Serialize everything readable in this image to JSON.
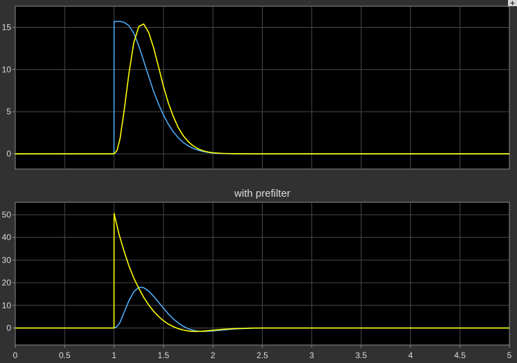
{
  "chart_data": [
    {
      "type": "line",
      "title": "",
      "xlabel": "",
      "ylabel": "",
      "xlim": [
        0,
        5
      ],
      "ylim": [
        -1.8,
        17.5
      ],
      "grid": true,
      "background": "#000000",
      "xticks": [
        0,
        0.5,
        1,
        1.5,
        2,
        2.5,
        3,
        3.5,
        4,
        4.5,
        5
      ],
      "xtick_labels_shown": false,
      "yticks": [
        0,
        5,
        10,
        15
      ],
      "series": [
        {
          "color": "#4dabf7",
          "x": [
            0,
            0.999,
            1.0,
            1.03,
            1.06,
            1.1,
            1.15,
            1.2,
            1.25,
            1.3,
            1.35,
            1.4,
            1.45,
            1.5,
            1.55,
            1.6,
            1.65,
            1.7,
            1.75,
            1.8,
            1.85,
            1.9,
            1.95,
            2.0,
            2.1,
            2.2,
            2.4,
            2.7,
            3.0,
            3.5,
            4.0,
            4.5,
            5.0
          ],
          "y": [
            0,
            0,
            15.7,
            15.7,
            15.7,
            15.6,
            15.2,
            14.3,
            12.8,
            11.0,
            9.2,
            7.4,
            5.9,
            4.6,
            3.5,
            2.6,
            1.9,
            1.35,
            0.95,
            0.65,
            0.43,
            0.28,
            0.17,
            0.1,
            0.04,
            0.015,
            0,
            0,
            0,
            0,
            0,
            0,
            0
          ]
        },
        {
          "color": "#ffff00",
          "x": [
            0,
            1.0,
            1.03,
            1.06,
            1.1,
            1.15,
            1.2,
            1.25,
            1.3,
            1.35,
            1.4,
            1.45,
            1.5,
            1.55,
            1.6,
            1.65,
            1.7,
            1.75,
            1.8,
            1.85,
            1.9,
            1.95,
            2.0,
            2.1,
            2.2,
            2.4,
            2.7,
            3.0,
            3.5,
            4.0,
            4.5,
            5.0
          ],
          "y": [
            0,
            0,
            0.4,
            1.8,
            5.0,
            9.5,
            13.2,
            15.1,
            15.4,
            14.4,
            12.6,
            10.3,
            8.0,
            6.0,
            4.4,
            3.1,
            2.15,
            1.45,
            0.95,
            0.6,
            0.37,
            0.22,
            0.13,
            0.05,
            0.02,
            0,
            0,
            0,
            0,
            0,
            0,
            0
          ]
        }
      ]
    },
    {
      "type": "line",
      "title": "with prefilter",
      "xlabel": "",
      "ylabel": "",
      "xlim": [
        0,
        5
      ],
      "ylim": [
        -7.5,
        55.5
      ],
      "grid": true,
      "background": "#000000",
      "xticks": [
        0,
        0.5,
        1,
        1.5,
        2,
        2.5,
        3,
        3.5,
        4,
        4.5,
        5
      ],
      "xtick_labels": [
        "0",
        "0.5",
        "1",
        "1.5",
        "2",
        "2.5",
        "3",
        "3.5",
        "4",
        "4.5",
        "5"
      ],
      "yticks": [
        0,
        10,
        20,
        30,
        40,
        50
      ],
      "series": [
        {
          "color": "#4dabf7",
          "x": [
            0,
            1.0,
            1.03,
            1.06,
            1.1,
            1.15,
            1.2,
            1.25,
            1.3,
            1.35,
            1.4,
            1.45,
            1.5,
            1.55,
            1.6,
            1.65,
            1.7,
            1.75,
            1.8,
            1.85,
            1.9,
            2.0,
            2.1,
            2.2,
            2.3,
            2.4,
            2.5,
            2.7,
            3.0,
            3.5,
            4.0,
            4.5,
            5.0
          ],
          "y": [
            0,
            0,
            0.6,
            2.5,
            6.8,
            12.0,
            16.0,
            18.0,
            17.8,
            16.3,
            14.0,
            11.4,
            8.7,
            6.2,
            4.0,
            2.2,
            0.8,
            -0.3,
            -1.0,
            -1.4,
            -1.5,
            -1.3,
            -0.9,
            -0.5,
            -0.25,
            -0.1,
            0,
            0,
            0,
            0,
            0,
            0,
            0
          ]
        },
        {
          "color": "#ffff00",
          "x": [
            0,
            0.999,
            1.0,
            1.05,
            1.1,
            1.15,
            1.2,
            1.25,
            1.3,
            1.35,
            1.4,
            1.45,
            1.5,
            1.55,
            1.6,
            1.65,
            1.7,
            1.75,
            1.8,
            1.85,
            1.9,
            2.0,
            2.1,
            2.2,
            2.3,
            2.4,
            2.5,
            2.7,
            3.0,
            3.5,
            4.0,
            4.5,
            5.0
          ],
          "y": [
            0,
            0,
            50.5,
            41.5,
            34.0,
            27.5,
            22.0,
            17.5,
            13.5,
            10.2,
            7.4,
            5.1,
            3.2,
            1.7,
            0.6,
            -0.3,
            -0.9,
            -1.3,
            -1.5,
            -1.5,
            -1.4,
            -1.0,
            -0.6,
            -0.3,
            -0.15,
            -0.05,
            0,
            0,
            0,
            0,
            0,
            0,
            0
          ]
        }
      ]
    }
  ]
}
